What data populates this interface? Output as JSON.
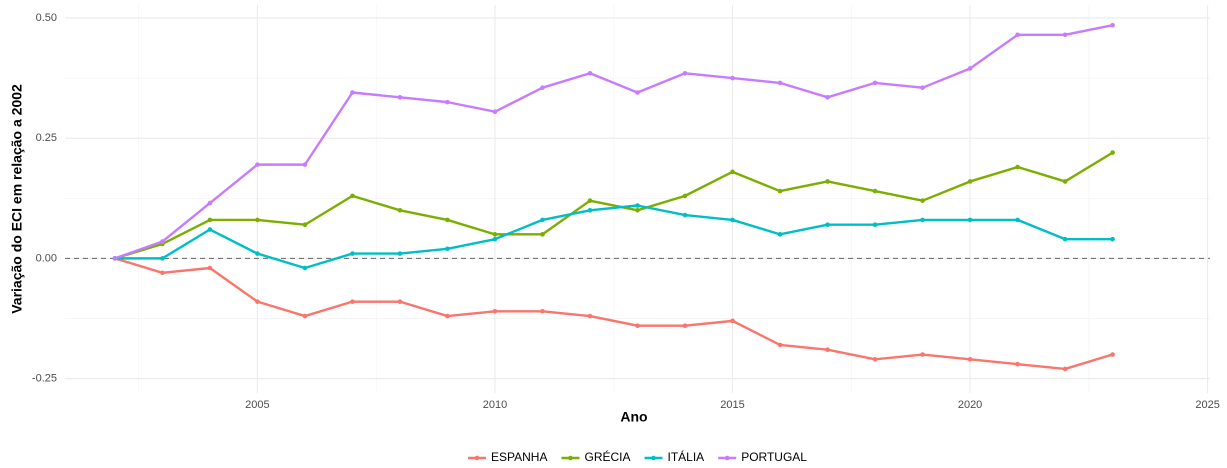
{
  "chart_data": {
    "type": "line",
    "y_label": "Variação do ECI em relação a 2002",
    "x_label": "Ano",
    "x": [
      2002,
      2003,
      2004,
      2005,
      2006,
      2007,
      2008,
      2009,
      2010,
      2011,
      2012,
      2013,
      2014,
      2015,
      2016,
      2017,
      2018,
      2019,
      2020,
      2021,
      2022,
      2023
    ],
    "series": [
      {
        "name": "ESPANHA",
        "color": "#F8766D",
        "values": [
          0,
          -0.03,
          -0.02,
          -0.09,
          -0.12,
          -0.09,
          -0.09,
          -0.12,
          -0.11,
          -0.11,
          -0.12,
          -0.14,
          -0.14,
          -0.13,
          -0.18,
          -0.19,
          -0.21,
          -0.2,
          -0.21,
          -0.22,
          -0.23,
          -0.2
        ]
      },
      {
        "name": "GRÉCIA",
        "color": "#7CAE00",
        "values": [
          0,
          0.03,
          0.08,
          0.08,
          0.07,
          0.13,
          0.1,
          0.08,
          0.05,
          0.05,
          0.12,
          0.1,
          0.13,
          0.18,
          0.14,
          0.16,
          0.14,
          0.12,
          0.16,
          0.19,
          0.16,
          0.22
        ]
      },
      {
        "name": "ITÁLIA",
        "color": "#00BFC4",
        "values": [
          0,
          0,
          0.06,
          0.01,
          -0.02,
          0.01,
          0.01,
          0.02,
          0.04,
          0.08,
          0.1,
          0.11,
          0.09,
          0.08,
          0.05,
          0.07,
          0.07,
          0.08,
          0.08,
          0.08,
          0.04,
          0.04
        ]
      },
      {
        "name": "PORTUGAL",
        "color": "#C77CFF",
        "values": [
          0,
          0.035,
          0.115,
          0.195,
          0.195,
          0.345,
          0.335,
          0.325,
          0.305,
          0.355,
          0.385,
          0.345,
          0.385,
          0.375,
          0.365,
          0.335,
          0.365,
          0.355,
          0.395,
          0.465,
          0.465,
          0.485
        ]
      }
    ],
    "xlim": [
      2000.95,
      2025.05
    ],
    "xticks": [
      2005,
      2010,
      2015,
      2020,
      2025
    ],
    "ylim": [
      -0.28,
      0.527
    ],
    "yticks": [
      -0.25,
      {
        "value": 0,
        "label": "0.00"
      },
      0.25,
      {
        "value": 0.5,
        "label": "0.50"
      }
    ],
    "hline": 0,
    "grid": true,
    "minor_grid": true,
    "legend": "bottom"
  }
}
